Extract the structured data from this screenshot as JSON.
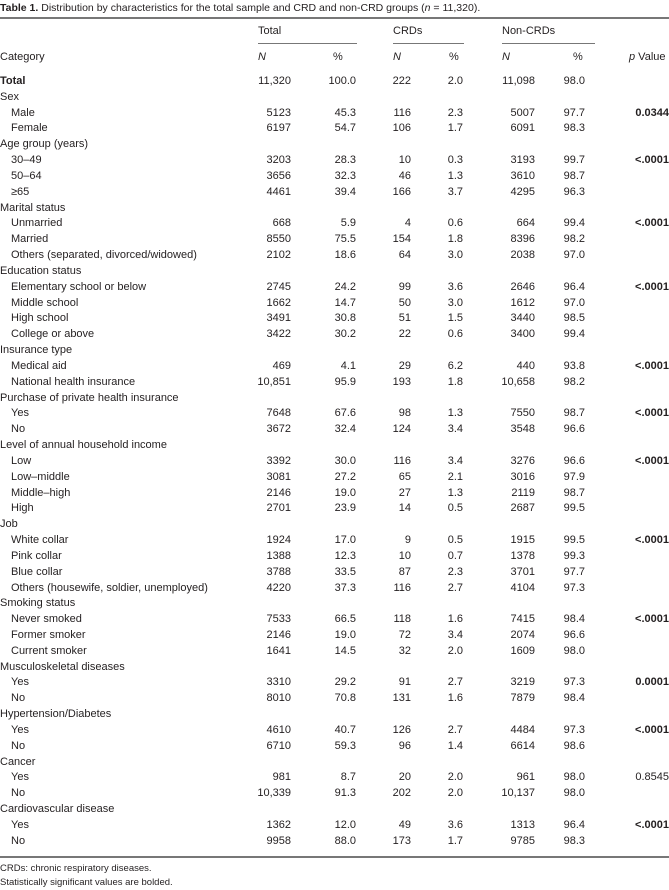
{
  "caption": {
    "label": "Table 1.",
    "text_before_n": "Distribution by characteristics for the total sample and CRD and non-CRD groups (",
    "n_symbol": "n",
    "text_after_n": " = 11,320)."
  },
  "header": {
    "groups": [
      "Total",
      "CRDs",
      "Non-CRDs"
    ],
    "category": "Category",
    "n": "N",
    "pct": "%",
    "p_value_symbol": "p",
    "p_value_label": " Value"
  },
  "total_row": {
    "label": "Total",
    "values": [
      "11,320",
      "100.0",
      "222",
      "2.0",
      "11,098",
      "98.0"
    ]
  },
  "groups": [
    {
      "name": "Sex",
      "p": "0.0344",
      "p_bold": true,
      "rows": [
        {
          "label": "Male",
          "values": [
            "5123",
            "45.3",
            "116",
            "2.3",
            "5007",
            "97.7"
          ]
        },
        {
          "label": "Female",
          "values": [
            "6197",
            "54.7",
            "106",
            "1.7",
            "6091",
            "98.3"
          ]
        }
      ]
    },
    {
      "name": "Age group (years)",
      "p": "<.0001",
      "p_bold": true,
      "rows": [
        {
          "label": "30–49",
          "values": [
            "3203",
            "28.3",
            "10",
            "0.3",
            "3193",
            "99.7"
          ]
        },
        {
          "label": "50–64",
          "values": [
            "3656",
            "32.3",
            "46",
            "1.3",
            "3610",
            "98.7"
          ]
        },
        {
          "label": "≥65",
          "values": [
            "4461",
            "39.4",
            "166",
            "3.7",
            "4295",
            "96.3"
          ]
        }
      ]
    },
    {
      "name": "Marital status",
      "p": "<.0001",
      "p_bold": true,
      "rows": [
        {
          "label": "Unmarried",
          "values": [
            "668",
            "5.9",
            "4",
            "0.6",
            "664",
            "99.4"
          ]
        },
        {
          "label": "Married",
          "values": [
            "8550",
            "75.5",
            "154",
            "1.8",
            "8396",
            "98.2"
          ]
        },
        {
          "label": "Others (separated, divorced/widowed)",
          "values": [
            "2102",
            "18.6",
            "64",
            "3.0",
            "2038",
            "97.0"
          ]
        }
      ]
    },
    {
      "name": "Education status",
      "p": "<.0001",
      "p_bold": true,
      "rows": [
        {
          "label": "Elementary school or below",
          "values": [
            "2745",
            "24.2",
            "99",
            "3.6",
            "2646",
            "96.4"
          ]
        },
        {
          "label": "Middle school",
          "values": [
            "1662",
            "14.7",
            "50",
            "3.0",
            "1612",
            "97.0"
          ]
        },
        {
          "label": "High school",
          "values": [
            "3491",
            "30.8",
            "51",
            "1.5",
            "3440",
            "98.5"
          ]
        },
        {
          "label": "College or above",
          "values": [
            "3422",
            "30.2",
            "22",
            "0.6",
            "3400",
            "99.4"
          ]
        }
      ]
    },
    {
      "name": "Insurance type",
      "p": "<.0001",
      "p_bold": true,
      "rows": [
        {
          "label": "Medical aid",
          "values": [
            "469",
            "4.1",
            "29",
            "6.2",
            "440",
            "93.8"
          ]
        },
        {
          "label": "National health insurance",
          "values": [
            "10,851",
            "95.9",
            "193",
            "1.8",
            "10,658",
            "98.2"
          ]
        }
      ]
    },
    {
      "name": "Purchase of private health insurance",
      "p": "<.0001",
      "p_bold": true,
      "rows": [
        {
          "label": "Yes",
          "values": [
            "7648",
            "67.6",
            "98",
            "1.3",
            "7550",
            "98.7"
          ]
        },
        {
          "label": "No",
          "values": [
            "3672",
            "32.4",
            "124",
            "3.4",
            "3548",
            "96.6"
          ]
        }
      ]
    },
    {
      "name": "Level of annual household income",
      "p": "<.0001",
      "p_bold": true,
      "rows": [
        {
          "label": "Low",
          "values": [
            "3392",
            "30.0",
            "116",
            "3.4",
            "3276",
            "96.6"
          ]
        },
        {
          "label": "Low–middle",
          "values": [
            "3081",
            "27.2",
            "65",
            "2.1",
            "3016",
            "97.9"
          ]
        },
        {
          "label": "Middle–high",
          "values": [
            "2146",
            "19.0",
            "27",
            "1.3",
            "2119",
            "98.7"
          ]
        },
        {
          "label": "High",
          "values": [
            "2701",
            "23.9",
            "14",
            "0.5",
            "2687",
            "99.5"
          ]
        }
      ]
    },
    {
      "name": "Job",
      "p": "<.0001",
      "p_bold": true,
      "rows": [
        {
          "label": "White collar",
          "values": [
            "1924",
            "17.0",
            "9",
            "0.5",
            "1915",
            "99.5"
          ]
        },
        {
          "label": "Pink collar",
          "values": [
            "1388",
            "12.3",
            "10",
            "0.7",
            "1378",
            "99.3"
          ]
        },
        {
          "label": "Blue collar",
          "values": [
            "3788",
            "33.5",
            "87",
            "2.3",
            "3701",
            "97.7"
          ]
        },
        {
          "label": "Others (housewife, soldier, unemployed)",
          "values": [
            "4220",
            "37.3",
            "116",
            "2.7",
            "4104",
            "97.3"
          ]
        }
      ]
    },
    {
      "name": "Smoking status",
      "p": "<.0001",
      "p_bold": true,
      "rows": [
        {
          "label": "Never smoked",
          "values": [
            "7533",
            "66.5",
            "118",
            "1.6",
            "7415",
            "98.4"
          ]
        },
        {
          "label": "Former smoker",
          "values": [
            "2146",
            "19.0",
            "72",
            "3.4",
            "2074",
            "96.6"
          ]
        },
        {
          "label": "Current smoker",
          "values": [
            "1641",
            "14.5",
            "32",
            "2.0",
            "1609",
            "98.0"
          ]
        }
      ]
    },
    {
      "name": "Musculoskeletal diseases",
      "p": "0.0001",
      "p_bold": true,
      "rows": [
        {
          "label": "Yes",
          "values": [
            "3310",
            "29.2",
            "91",
            "2.7",
            "3219",
            "97.3"
          ]
        },
        {
          "label": "No",
          "values": [
            "8010",
            "70.8",
            "131",
            "1.6",
            "7879",
            "98.4"
          ]
        }
      ]
    },
    {
      "name": "Hypertension/Diabetes",
      "p": "<.0001",
      "p_bold": true,
      "rows": [
        {
          "label": "Yes",
          "values": [
            "4610",
            "40.7",
            "126",
            "2.7",
            "4484",
            "97.3"
          ]
        },
        {
          "label": "No",
          "values": [
            "6710",
            "59.3",
            "96",
            "1.4",
            "6614",
            "98.6"
          ]
        }
      ]
    },
    {
      "name": "Cancer",
      "p": "0.8545",
      "p_bold": false,
      "rows": [
        {
          "label": "Yes",
          "values": [
            "981",
            "8.7",
            "20",
            "2.0",
            "961",
            "98.0"
          ]
        },
        {
          "label": "No",
          "values": [
            "10,339",
            "91.3",
            "202",
            "2.0",
            "10,137",
            "98.0"
          ]
        }
      ]
    },
    {
      "name": "Cardiovascular disease",
      "p": "<.0001",
      "p_bold": true,
      "rows": [
        {
          "label": "Yes",
          "values": [
            "1362",
            "12.0",
            "49",
            "3.6",
            "1313",
            "96.4"
          ]
        },
        {
          "label": "No",
          "values": [
            "9958",
            "88.0",
            "173",
            "1.7",
            "9785",
            "98.3"
          ]
        }
      ]
    }
  ],
  "footnotes": [
    "CRDs: chronic respiratory diseases.",
    "Statistically significant values are bolded."
  ]
}
